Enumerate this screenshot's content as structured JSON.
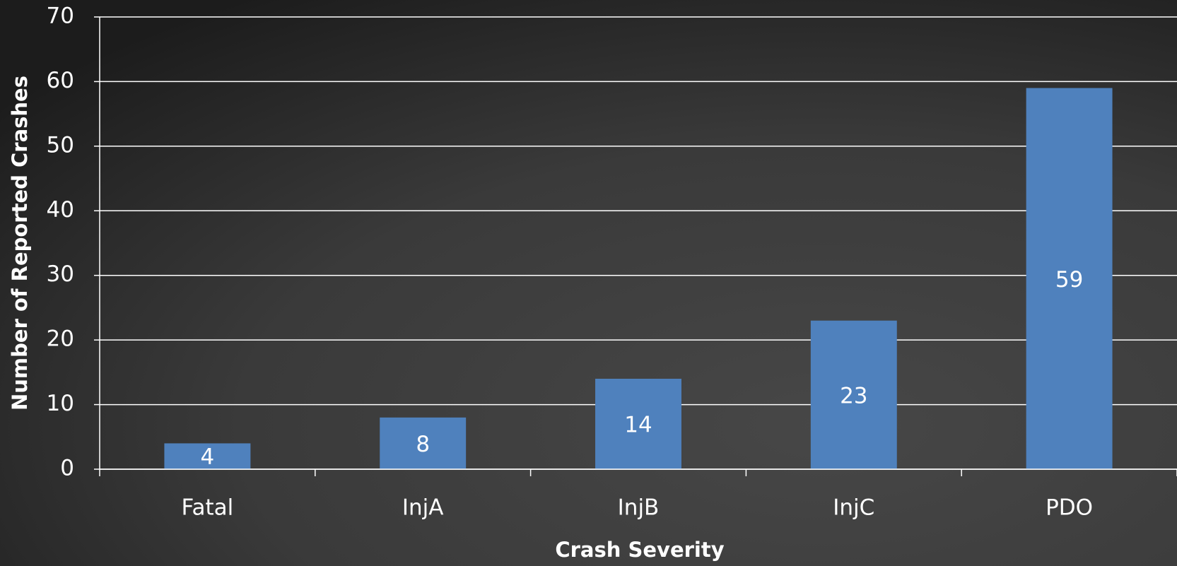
{
  "chart_data": {
    "type": "bar",
    "xlabel": "Crash Severity",
    "ylabel": "Number of Reported Crashes",
    "categories": [
      "Fatal",
      "InjA",
      "InjB",
      "InjC",
      "PDO"
    ],
    "values": [
      4,
      8,
      14,
      23,
      59
    ],
    "color": "#4f81bd",
    "ylim": [
      0,
      70
    ],
    "yticks": [
      0,
      10,
      20,
      30,
      40,
      50,
      60,
      70
    ],
    "grid": true
  }
}
